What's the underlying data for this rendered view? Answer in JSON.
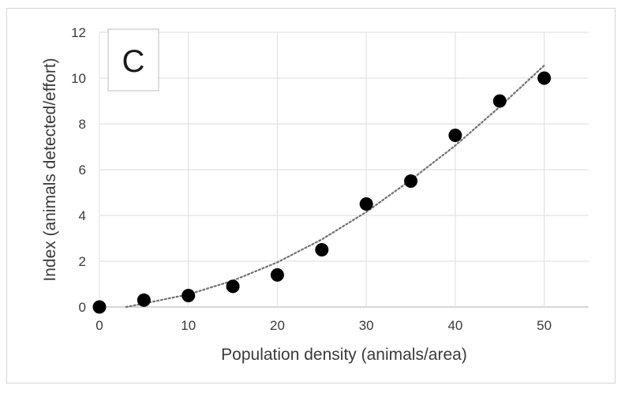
{
  "chart_data": {
    "type": "scatter",
    "panel_label": "C",
    "xlabel": "Population density (animals/area)",
    "ylabel": "Index (animals detected/effort)",
    "xlim": [
      0,
      55
    ],
    "ylim": [
      0,
      12
    ],
    "xticks": [
      0,
      10,
      20,
      30,
      40,
      50
    ],
    "yticks": [
      0,
      2,
      4,
      6,
      8,
      10,
      12
    ],
    "grid": true,
    "marker_color": "#000000",
    "trendline_color": "#707070",
    "points": [
      {
        "x": 0,
        "y": 0
      },
      {
        "x": 5,
        "y": 0.3
      },
      {
        "x": 10,
        "y": 0.5
      },
      {
        "x": 15,
        "y": 0.9
      },
      {
        "x": 20,
        "y": 1.4
      },
      {
        "x": 25,
        "y": 2.5
      },
      {
        "x": 30,
        "y": 4.5
      },
      {
        "x": 35,
        "y": 5.5
      },
      {
        "x": 40,
        "y": 7.5
      },
      {
        "x": 45,
        "y": 9
      },
      {
        "x": 50,
        "y": 10
      }
    ],
    "trendline": {
      "type": "polynomial",
      "x": [
        3,
        5,
        10,
        15,
        20,
        25,
        30,
        35,
        40,
        45,
        50
      ],
      "y": [
        0,
        0.15,
        0.55,
        1.15,
        1.95,
        2.95,
        4.15,
        5.55,
        7.05,
        8.75,
        10.55
      ]
    }
  }
}
